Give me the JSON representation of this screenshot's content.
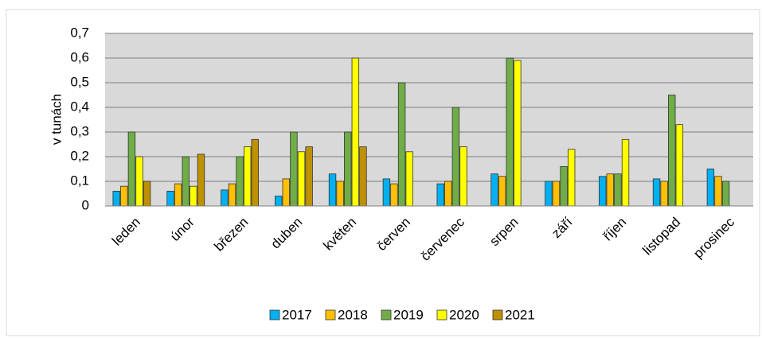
{
  "chart_data": {
    "type": "bar",
    "y_label": "v tunách",
    "categories": [
      "leden",
      "únor",
      "březen",
      "duben",
      "květen",
      "červen",
      "červenec",
      "srpen",
      "září",
      "říjen",
      "listopad",
      "prosinec"
    ],
    "series": [
      {
        "name": "2017",
        "color": "#00b0f0",
        "values": [
          0.06,
          0.06,
          0.065,
          0.04,
          0.13,
          0.11,
          0.09,
          0.13,
          0.1,
          0.12,
          0.11,
          0.15
        ]
      },
      {
        "name": "2018",
        "color": "#ffc000",
        "values": [
          0.08,
          0.09,
          0.09,
          0.11,
          0.1,
          0.09,
          0.1,
          0.12,
          0.1,
          0.13,
          0.1,
          0.12
        ]
      },
      {
        "name": "2019",
        "color": "#70ad47",
        "values": [
          0.3,
          0.2,
          0.2,
          0.3,
          0.3,
          0.5,
          0.4,
          0.6,
          0.16,
          0.13,
          0.45,
          0.1
        ]
      },
      {
        "name": "2020",
        "color": "#ffff00",
        "values": [
          0.2,
          0.08,
          0.24,
          0.22,
          0.6,
          0.22,
          0.24,
          0.59,
          0.23,
          0.27,
          0.33,
          null
        ]
      },
      {
        "name": "2021",
        "color": "#bf9000",
        "values": [
          0.1,
          0.21,
          0.27,
          0.24,
          0.24,
          null,
          null,
          null,
          null,
          null,
          null,
          null
        ]
      }
    ],
    "ylim": [
      0,
      0.7
    ],
    "yticks": [
      0,
      {
        "value": 0.1,
        "label": "0,1"
      },
      {
        "value": 0.2,
        "label": "0,2"
      },
      {
        "value": 0.3,
        "label": "0,3"
      },
      {
        "value": 0.4,
        "label": "0,4"
      },
      {
        "value": 0.5,
        "label": "0,5"
      },
      {
        "value": 0.6,
        "label": "0,6"
      },
      {
        "value": 0.7,
        "label": "0,7"
      }
    ],
    "grid": true,
    "legend": "bottom",
    "plot_background": "#d9d9d9"
  }
}
